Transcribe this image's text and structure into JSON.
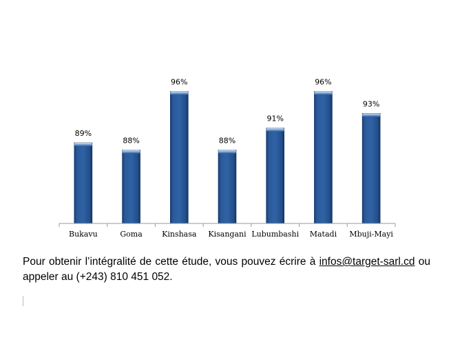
{
  "chart_data": {
    "type": "bar",
    "categories": [
      "Bukavu",
      "Goma",
      "Kinshasa",
      "Kisangani",
      "Lubumbashi",
      "Matadi",
      "Mbuji-Mayi"
    ],
    "values": [
      89,
      88,
      96,
      88,
      91,
      96,
      93
    ],
    "data_labels": [
      "89%",
      "88%",
      "96%",
      "88%",
      "91%",
      "96%",
      "93%"
    ],
    "ylim": [
      78,
      100
    ],
    "grid": false,
    "legend": "none",
    "bar_color": "#1f4e8c",
    "bar_highlight": "#7fa6d6",
    "axis_color": "#9a9a9a"
  },
  "caption": {
    "before_email": "Pour obtenir l’intégralité de cette étude, vous pouvez écrire à ",
    "email": "infos@target-sarl.cd",
    "after_email": " ou appeler au (+243) 810 451 052."
  }
}
